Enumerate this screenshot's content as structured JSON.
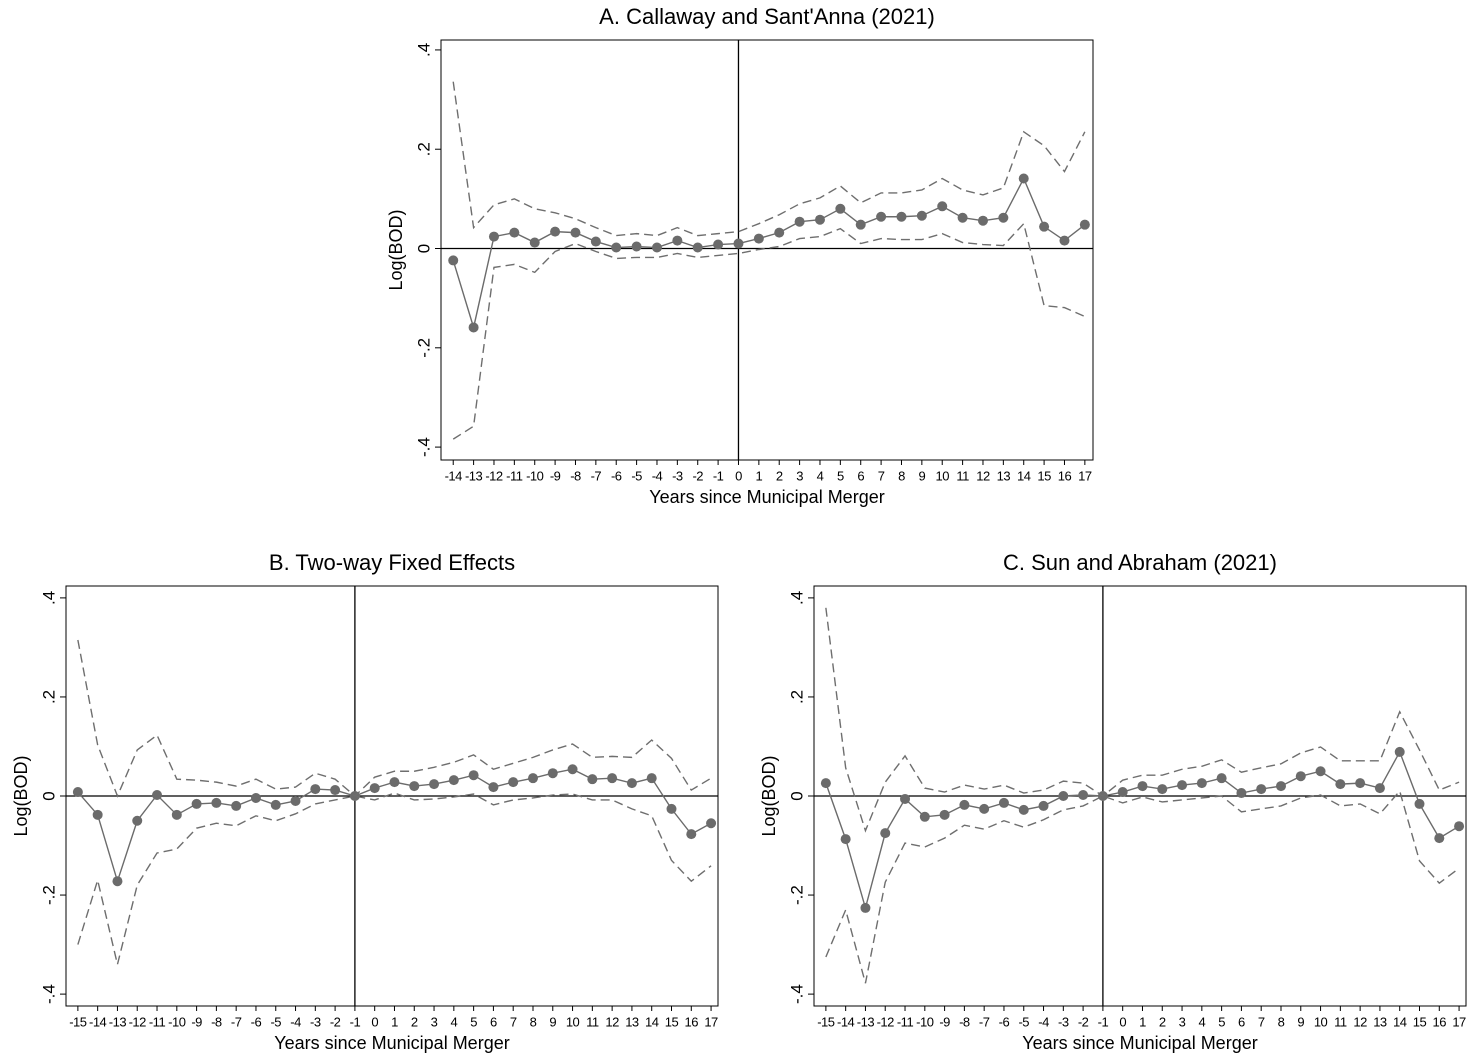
{
  "chart_data": [
    {
      "type": "line",
      "title": "A. Callaway and Sant'Anna (2021)",
      "x_label": "Years since Municipal Merger",
      "y_label": "Log(BOD)",
      "x": [
        -14,
        -13,
        -12,
        -11,
        -10,
        -9,
        -8,
        -7,
        -6,
        -5,
        -4,
        -3,
        -2,
        -1,
        0,
        1,
        2,
        3,
        4,
        5,
        6,
        7,
        8,
        9,
        10,
        11,
        12,
        13,
        14,
        15,
        16,
        17
      ],
      "xlim": [
        -14.6,
        17.4
      ],
      "xticks": [
        -14,
        -13,
        -12,
        -11,
        -10,
        -9,
        -8,
        -7,
        -6,
        -5,
        -4,
        -3,
        -2,
        -1,
        0,
        1,
        2,
        3,
        4,
        5,
        6,
        7,
        8,
        9,
        10,
        11,
        12,
        13,
        14,
        15,
        16,
        17
      ],
      "ylim": [
        -0.426,
        0.42
      ],
      "yticks": [
        {
          "value": -0.4,
          "label": "-.4"
        },
        {
          "value": -0.2,
          "label": "-.2"
        },
        0,
        {
          "value": 0.2,
          "label": ".2"
        },
        {
          "value": 0.4,
          "label": ".4"
        }
      ],
      "hline": 0,
      "vline": 0,
      "series": [
        {
          "color": "#6b6b6b",
          "style": "markers",
          "values": [
            -0.024,
            -0.159,
            0.024,
            0.032,
            0.012,
            0.034,
            0.032,
            0.014,
            0.002,
            0.004,
            0.002,
            0.016,
            0.002,
            0.008,
            0.01,
            0.02,
            0.032,
            0.054,
            0.058,
            0.08,
            0.048,
            0.064,
            0.064,
            0.066,
            0.085,
            0.062,
            0.056,
            0.062,
            0.141,
            0.044,
            0.016,
            0.048
          ]
        },
        {
          "color": "#6e6e6e",
          "style": "dashed",
          "values": [
            0.336,
            0.042,
            0.088,
            0.1,
            0.08,
            0.072,
            0.06,
            0.042,
            0.026,
            0.03,
            0.026,
            0.042,
            0.026,
            0.03,
            0.034,
            0.05,
            0.068,
            0.09,
            0.102,
            0.126,
            0.092,
            0.112,
            0.112,
            0.118,
            0.141,
            0.118,
            0.108,
            0.122,
            0.235,
            0.207,
            0.155,
            0.235
          ]
        },
        {
          "color": "#6e6e6e",
          "style": "dashed",
          "values": [
            -0.384,
            -0.358,
            -0.038,
            -0.032,
            -0.048,
            -0.006,
            0.01,
            -0.006,
            -0.02,
            -0.018,
            -0.018,
            -0.01,
            -0.018,
            -0.014,
            -0.01,
            -0.002,
            0.004,
            0.02,
            0.024,
            0.04,
            0.01,
            0.02,
            0.018,
            0.018,
            0.03,
            0.012,
            0.008,
            0.006,
            0.05,
            -0.115,
            -0.119,
            -0.137
          ]
        }
      ]
    },
    {
      "type": "line",
      "title": "B. Two-way Fixed Effects",
      "x_label": "Years since Municipal Merger",
      "y_label": "Log(BOD)",
      "x": [
        -15,
        -14,
        -13,
        -12,
        -11,
        -10,
        -9,
        -8,
        -7,
        -6,
        -5,
        -4,
        -3,
        -2,
        -1,
        0,
        1,
        2,
        3,
        4,
        5,
        6,
        7,
        8,
        9,
        10,
        11,
        12,
        13,
        14,
        15,
        16,
        17
      ],
      "xlim": [
        -15.6,
        17.35
      ],
      "xticks": [
        -15,
        -14,
        -13,
        -12,
        -11,
        -10,
        -9,
        -8,
        -7,
        -6,
        -5,
        -4,
        -3,
        -2,
        -1,
        0,
        1,
        2,
        3,
        4,
        5,
        6,
        7,
        8,
        9,
        10,
        11,
        12,
        13,
        14,
        15,
        16,
        17
      ],
      "ylim": [
        -0.424,
        0.424
      ],
      "yticks": [
        {
          "value": -0.4,
          "label": "-.4"
        },
        {
          "value": -0.2,
          "label": "-.2"
        },
        0,
        {
          "value": 0.2,
          "label": ".2"
        },
        {
          "value": 0.4,
          "label": ".4"
        }
      ],
      "hline": 0,
      "vline": -1,
      "series": [
        {
          "color": "#6b6b6b",
          "style": "markers",
          "values": [
            0.008,
            -0.038,
            -0.172,
            -0.05,
            0.002,
            -0.038,
            -0.016,
            -0.014,
            -0.02,
            -0.004,
            -0.018,
            -0.01,
            0.014,
            0.012,
            0,
            0.016,
            0.028,
            0.02,
            0.024,
            0.032,
            0.042,
            0.018,
            0.028,
            0.036,
            0.046,
            0.054,
            0.034,
            0.036,
            0.026,
            0.036,
            -0.026,
            -0.077,
            -0.055
          ]
        },
        {
          "color": "#6e6e6e",
          "style": "dashed",
          "values": [
            0.315,
            0.103,
            0,
            0.093,
            0.123,
            0.034,
            0.032,
            0.028,
            0.02,
            0.034,
            0.014,
            0.018,
            0.046,
            0.034,
            0,
            0.038,
            0.05,
            0.05,
            0.058,
            0.068,
            0.083,
            0.054,
            0.066,
            0.078,
            0.093,
            0.105,
            0.078,
            0.08,
            0.078,
            0.113,
            0.076,
            0.012,
            0.036
          ]
        },
        {
          "color": "#6e6e6e",
          "style": "dashed",
          "values": [
            -0.3,
            -0.17,
            -0.34,
            -0.18,
            -0.115,
            -0.107,
            -0.065,
            -0.055,
            -0.06,
            -0.04,
            -0.05,
            -0.036,
            -0.016,
            -0.008,
            0,
            -0.008,
            0.006,
            -0.008,
            -0.006,
            -0.002,
            0.004,
            -0.018,
            -0.008,
            -0.004,
            0.002,
            0.004,
            -0.008,
            -0.008,
            -0.026,
            -0.04,
            -0.13,
            -0.172,
            -0.141
          ]
        }
      ]
    },
    {
      "type": "line",
      "title": "C. Sun and Abraham (2021)",
      "x_label": "Years since Municipal Merger",
      "y_label": "Log(BOD)",
      "x": [
        -15,
        -14,
        -13,
        -12,
        -11,
        -10,
        -9,
        -8,
        -7,
        -6,
        -5,
        -4,
        -3,
        -2,
        -1,
        0,
        1,
        2,
        3,
        4,
        5,
        6,
        7,
        8,
        9,
        10,
        11,
        12,
        13,
        14,
        15,
        16,
        17
      ],
      "xlim": [
        -15.6,
        17.35
      ],
      "xticks": [
        -15,
        -14,
        -13,
        -12,
        -11,
        -10,
        -9,
        -8,
        -7,
        -6,
        -5,
        -4,
        -3,
        -2,
        -1,
        0,
        1,
        2,
        3,
        4,
        5,
        6,
        7,
        8,
        9,
        10,
        11,
        12,
        13,
        14,
        15,
        16,
        17
      ],
      "ylim": [
        -0.424,
        0.424
      ],
      "yticks": [
        {
          "value": -0.4,
          "label": "-.4"
        },
        {
          "value": -0.2,
          "label": "-.2"
        },
        0,
        {
          "value": 0.2,
          "label": ".2"
        },
        {
          "value": 0.4,
          "label": ".4"
        }
      ],
      "hline": 0,
      "vline": -1,
      "series": [
        {
          "color": "#6b6b6b",
          "style": "markers",
          "values": [
            0.026,
            -0.087,
            -0.226,
            -0.075,
            -0.006,
            -0.042,
            -0.038,
            -0.018,
            -0.026,
            -0.014,
            -0.028,
            -0.02,
            0,
            0.002,
            0,
            0.008,
            0.02,
            0.014,
            0.022,
            0.026,
            0.036,
            0.006,
            0.014,
            0.02,
            0.04,
            0.05,
            0.024,
            0.026,
            0.016,
            0.089,
            -0.016,
            -0.085,
            -0.061
          ]
        },
        {
          "color": "#6e6e6e",
          "style": "dashed",
          "values": [
            0.38,
            0.057,
            -0.07,
            0.028,
            0.081,
            0.016,
            0.008,
            0.022,
            0.014,
            0.022,
            0.006,
            0.012,
            0.03,
            0.026,
            0,
            0.032,
            0.042,
            0.042,
            0.054,
            0.06,
            0.073,
            0.048,
            0.057,
            0.065,
            0.087,
            0.099,
            0.071,
            0.071,
            0.071,
            0.17,
            0.093,
            0.012,
            0.028
          ]
        },
        {
          "color": "#6e6e6e",
          "style": "dashed",
          "values": [
            -0.325,
            -0.23,
            -0.378,
            -0.174,
            -0.095,
            -0.103,
            -0.085,
            -0.059,
            -0.067,
            -0.05,
            -0.063,
            -0.048,
            -0.028,
            -0.02,
            0,
            -0.014,
            -0.002,
            -0.012,
            -0.008,
            -0.004,
            0,
            -0.032,
            -0.026,
            -0.02,
            -0.004,
            0.002,
            -0.02,
            -0.016,
            -0.036,
            0.01,
            -0.131,
            -0.176,
            -0.146
          ]
        }
      ]
    }
  ]
}
